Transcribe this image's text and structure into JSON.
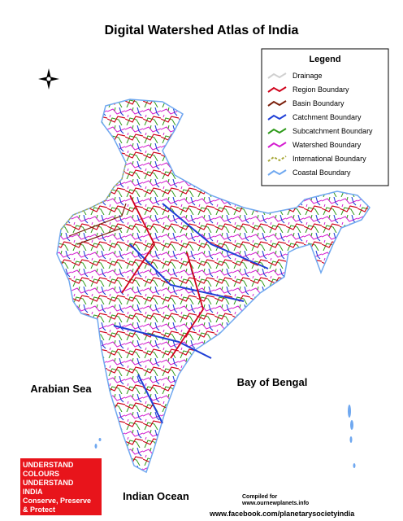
{
  "title": "Digital Watershed Atlas of India",
  "legend": {
    "title": "Legend",
    "items": [
      {
        "label": "Drainage",
        "color": "#d0d0d0"
      },
      {
        "label": "Region Boundary",
        "color": "#d0021b"
      },
      {
        "label": "Basin Boundary",
        "color": "#7a1e0a"
      },
      {
        "label": "Catchment Boundary",
        "color": "#1f3fd6"
      },
      {
        "label": "Subcatchment Boundary",
        "color": "#2e9a1a"
      },
      {
        "label": "Watershed Boundary",
        "color": "#d41ed0"
      },
      {
        "label": "International Boundary",
        "color": "#a8a83a"
      },
      {
        "label": "Coastal Boundary",
        "color": "#6fa8f0"
      }
    ]
  },
  "seas": {
    "arabian": "Arabian Sea",
    "bengal": "Bay of Bengal",
    "indian": "Indian Ocean"
  },
  "banner": [
    "UNDERSTAND",
    "COLOURS",
    "UNDERSTAND",
    "INDIA",
    "Conserve, Preserve",
    "& Protect"
  ],
  "credits": {
    "compiled": "Compiled for",
    "site": "www.ournewplanets.info",
    "facebook": "www.facebook.com/planetarysocietyindia"
  }
}
